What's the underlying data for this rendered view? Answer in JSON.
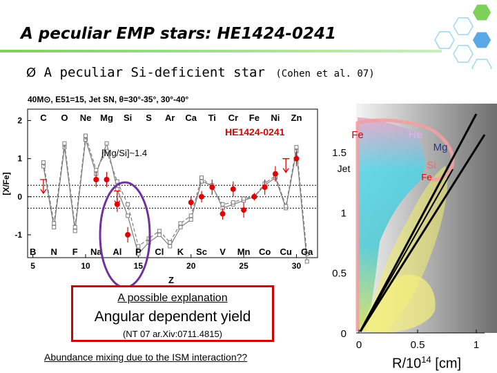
{
  "slide": {
    "title": "A peculiar EMP stars: HE1424-0241",
    "bullet": {
      "marker": "Ø",
      "text": "A peculiar Si-deficient star",
      "citation": "(Cohen et al. 07)"
    },
    "explanation": {
      "title": "A possible explanation",
      "main": "Angular dependent yield",
      "reference": "(NT 07 ar.Xiv:0711.4815)"
    },
    "ism_note": "Abundance mixing due to the ISM interaction??",
    "r_label": {
      "prefix": "R/10",
      "exponent": "14",
      "unit": " [cm]"
    },
    "colors": {
      "hex_green": "#7fd05a",
      "hex_blue": "#5aa9e6",
      "star_red": "#e00000",
      "oval_purple": "#7030a0",
      "box_red": "#d20000"
    }
  },
  "chart_data": [
    {
      "type": "scatter",
      "model_label": "40M⊙, E51=15, Jet SN, θ=30°-35°, 30°-40°",
      "star_label": "HE1424-0241",
      "annotation": "[Mg/Si]~1.4",
      "ylabel": "[X/Fe]",
      "xlabel": "Z",
      "xlim": [
        4.5,
        32
      ],
      "ylim": [
        -1.6,
        2.3
      ],
      "reference_lines_y": [
        0.3,
        0.0,
        -0.3
      ],
      "yticks": [
        2,
        1,
        0,
        -1
      ],
      "xticks": [
        5,
        10,
        15,
        20,
        25,
        30
      ],
      "top_elements": [
        {
          "label": "C",
          "z": 6
        },
        {
          "label": "O",
          "z": 8
        },
        {
          "label": "Ne",
          "z": 10
        },
        {
          "label": "Mg",
          "z": 12
        },
        {
          "label": "Si",
          "z": 14
        },
        {
          "label": "S",
          "z": 16
        },
        {
          "label": "Ar",
          "z": 18
        },
        {
          "label": "Ca",
          "z": 20
        },
        {
          "label": "Ti",
          "z": 22
        },
        {
          "label": "Cr",
          "z": 24
        },
        {
          "label": "Fe",
          "z": 26
        },
        {
          "label": "Ni",
          "z": 28
        },
        {
          "label": "Zn",
          "z": 30
        }
      ],
      "bottom_elements": [
        {
          "label": "B",
          "z": 5
        },
        {
          "label": "N",
          "z": 7
        },
        {
          "label": "F",
          "z": 9
        },
        {
          "label": "Na",
          "z": 11
        },
        {
          "label": "Al",
          "z": 13
        },
        {
          "label": "P",
          "z": 15
        },
        {
          "label": "Cl",
          "z": 17
        },
        {
          "label": "K",
          "z": 19
        },
        {
          "label": "Sc",
          "z": 21
        },
        {
          "label": "V",
          "z": 23
        },
        {
          "label": "Mn",
          "z": 25
        },
        {
          "label": "Co",
          "z": 27
        },
        {
          "label": "Cu",
          "z": 29
        },
        {
          "label": "Ga",
          "z": 31
        }
      ],
      "series": [
        {
          "style": "model_solid",
          "x": [
            6,
            7,
            8,
            9,
            10,
            11,
            12,
            13,
            14,
            15,
            16,
            17,
            18,
            19,
            20,
            21,
            22,
            23,
            24,
            25,
            26,
            27,
            28,
            29,
            30,
            31
          ],
          "y": [
            0.8,
            -0.8,
            1.3,
            -0.9,
            1.5,
            0.6,
            1.4,
            0.2,
            -0.5,
            -1.5,
            -1.2,
            -1.0,
            -1.3,
            -0.8,
            -0.6,
            0.4,
            0.3,
            -0.3,
            -0.2,
            -0.1,
            0.0,
            0.3,
            0.5,
            -0.3,
            1.2,
            -1.7
          ]
        },
        {
          "style": "model_dashed",
          "x": [
            6,
            7,
            8,
            9,
            10,
            11,
            12,
            13,
            14,
            15,
            16,
            17,
            18,
            19,
            20,
            21,
            22,
            23,
            24,
            25,
            26,
            27,
            28,
            29,
            30,
            31
          ],
          "y": [
            0.9,
            -0.7,
            1.4,
            -0.8,
            1.6,
            0.7,
            1.2,
            0.4,
            -0.2,
            -1.3,
            -1.1,
            -0.9,
            -1.2,
            -0.7,
            -0.5,
            0.5,
            0.25,
            -0.2,
            -0.15,
            -0.05,
            0.0,
            0.35,
            0.55,
            -0.25,
            1.3,
            -1.5
          ]
        },
        {
          "style": "observed",
          "x": [
            11,
            12,
            13,
            14,
            20,
            21,
            22,
            23,
            24,
            25,
            26,
            27,
            28,
            30
          ],
          "y": [
            0.45,
            0.45,
            -0.2,
            -1.0,
            -0.15,
            0.0,
            0.25,
            -0.45,
            0.2,
            -0.35,
            0.0,
            0.25,
            0.6,
            1.0
          ],
          "err": [
            0.2,
            0.2,
            0.2,
            0.2,
            0.15,
            0.15,
            0.2,
            0.15,
            0.2,
            0.2,
            0.1,
            0.2,
            0.2,
            0.2
          ]
        },
        {
          "style": "upper_limit",
          "x": [
            6,
            13,
            29
          ],
          "y": [
            0.45,
            0.15,
            1.0
          ]
        }
      ]
    },
    {
      "type": "area",
      "xticks": [
        0,
        0.5,
        1
      ],
      "yticks": [
        0,
        0.5,
        1,
        1.5
      ],
      "xlim": [
        0,
        1.1
      ],
      "ylim": [
        -0.05,
        1.9
      ],
      "labels": [
        "Fe",
        "He",
        "Mg",
        "Si",
        "Fe",
        "Jet"
      ]
    }
  ]
}
